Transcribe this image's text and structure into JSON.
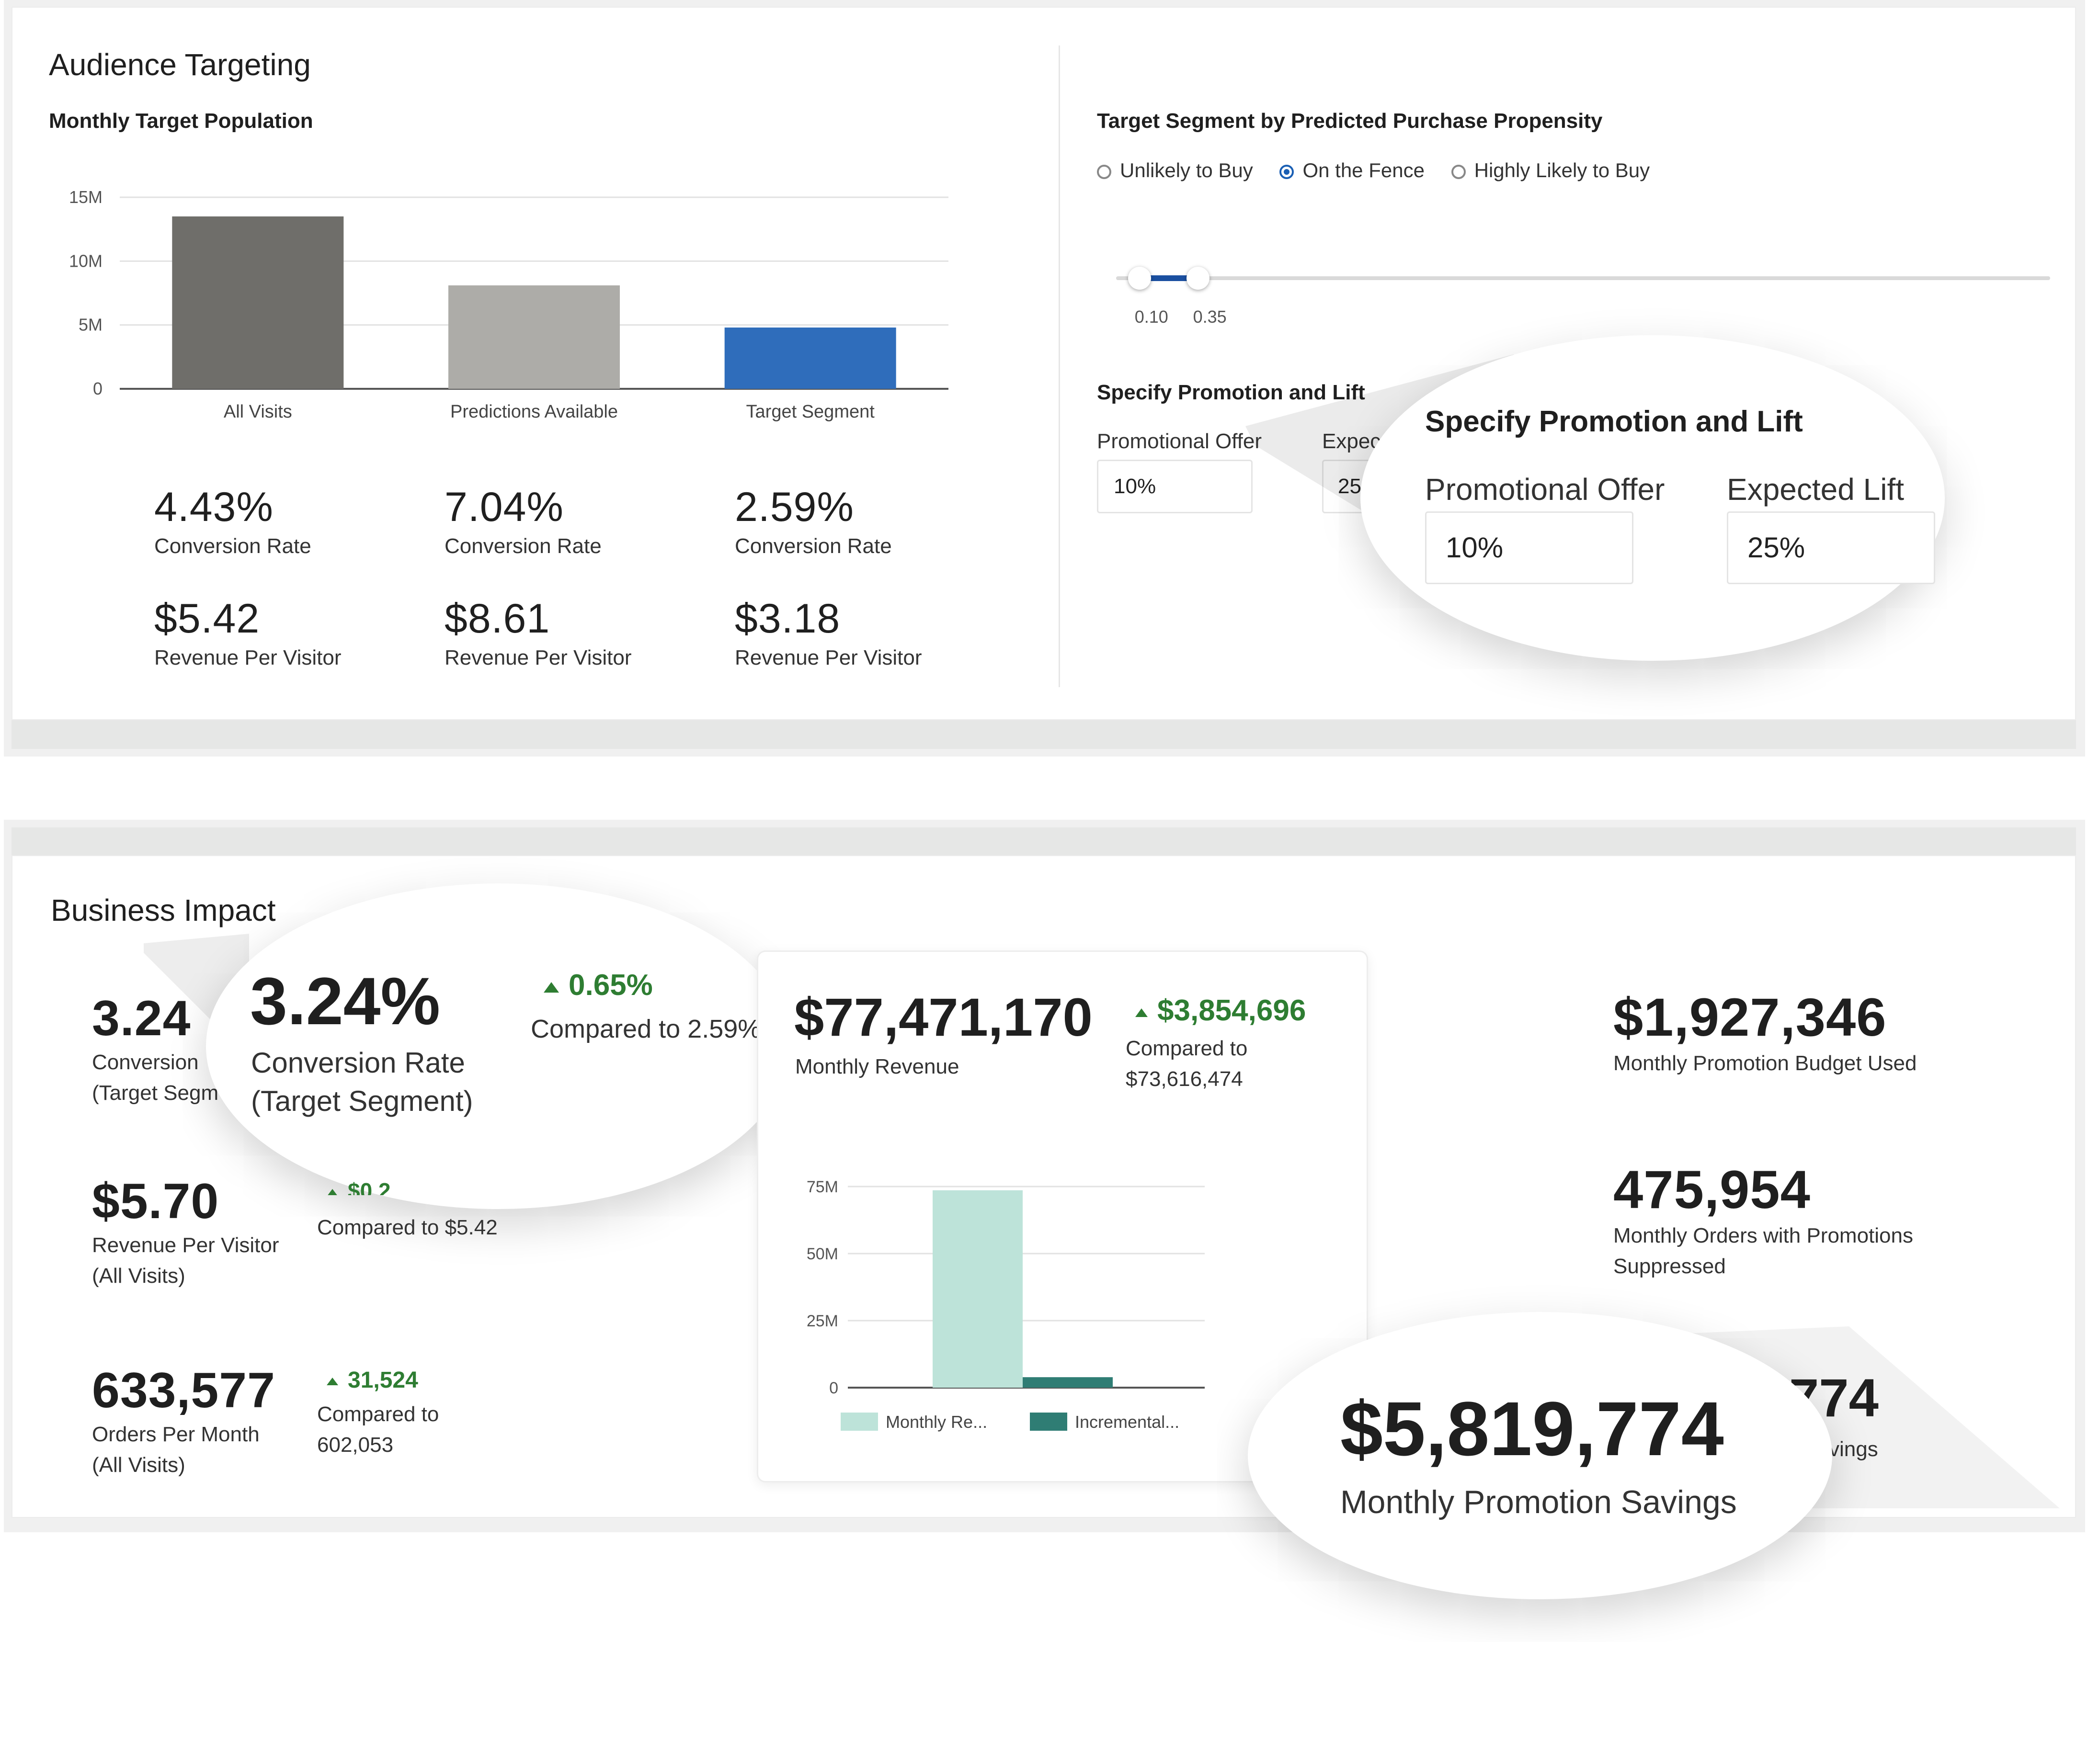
{
  "audience": {
    "title": "Audience Targeting",
    "subtitle": "Monthly Target Population",
    "stats": [
      {
        "rate": "4.43%",
        "rate_label": "Conversion Rate",
        "rpv": "$5.42",
        "rpv_label": "Revenue Per Visitor"
      },
      {
        "rate": "7.04%",
        "rate_label": "Conversion Rate",
        "rpv": "$8.61",
        "rpv_label": "Revenue Per Visitor"
      },
      {
        "rate": "2.59%",
        "rate_label": "Conversion Rate",
        "rpv": "$3.18",
        "rpv_label": "Revenue Per Visitor"
      }
    ]
  },
  "segment": {
    "title": "Target Segment by Predicted Purchase Propensity",
    "options": [
      "Unlikely to Buy",
      "On the Fence",
      "Highly Likely to Buy"
    ],
    "selected": "On the Fence",
    "slider": {
      "low": 0.1,
      "high": 0.35,
      "low_label": "0.10",
      "high_label": "0.35"
    }
  },
  "promotion": {
    "title": "Specify Promotion and Lift",
    "offer_label": "Promotional Offer",
    "offer_value": "10%",
    "lift_label": "Expected Lift",
    "lift_label_cut": "Expec",
    "lift_value": "25%",
    "lift_value_cut": "25"
  },
  "impact": {
    "title": "Business Impact",
    "conv": {
      "value": "3.24%",
      "value_cut": "3.24",
      "label1": "Conversion Rate",
      "label2": "(Target Segment)",
      "label1_cut": "Conversion",
      "label2_cut": "(Target Segm",
      "delta": "0.65%",
      "compared": "Compared to 2.59%"
    },
    "rpv": {
      "value": "$5.70",
      "label1": "Revenue Per Visitor",
      "label2": "(All Visits)",
      "delta_cut": "$0.2",
      "compared": "Compared to $5.42"
    },
    "orders": {
      "value": "633,577",
      "label1": "Orders Per Month",
      "label2": "(All Visits)",
      "delta": "31,524",
      "compared1": "Compared to",
      "compared2": "602,053"
    },
    "revenue": {
      "value": "$77,471,170",
      "label": "Monthly Revenue",
      "delta": "$3,854,696",
      "compared1": "Compared to",
      "compared2": "$73,616,474"
    },
    "budget": {
      "value": "$1,927,346",
      "label": "Monthly Promotion Budget Used"
    },
    "suppressed": {
      "value": "475,954",
      "label1": "Monthly Orders with Promotions",
      "label2": "Suppressed"
    },
    "savings": {
      "value": "$5,819,774",
      "label": "Monthly Promotion Savings",
      "value_cut": "774",
      "label_cut": "vings"
    }
  },
  "chart_data": [
    {
      "type": "bar",
      "categories": [
        "All Visits",
        "Predictions Available",
        "Target Segment"
      ],
      "values": [
        13.5,
        8.1,
        4.8
      ],
      "colors": [
        "#6f6e6a",
        "#adaca8",
        "#2f6dbb"
      ],
      "ylim": [
        0,
        15
      ],
      "yticks": [
        "0",
        "5M",
        "10M",
        "15M"
      ],
      "grid": true
    },
    {
      "type": "bar",
      "categories": [
        "Monthly Revenue",
        "Incremental"
      ],
      "series": [
        {
          "name": "Monthly Re...",
          "value": 73.6,
          "color": "#bde3d9"
        },
        {
          "name": "Incremental...",
          "value": 3.9,
          "color": "#2f7d74"
        }
      ],
      "ylim": [
        0,
        75
      ],
      "yticks": [
        "0",
        "25M",
        "50M",
        "75M"
      ],
      "grid": true,
      "legend": "bottom"
    }
  ]
}
